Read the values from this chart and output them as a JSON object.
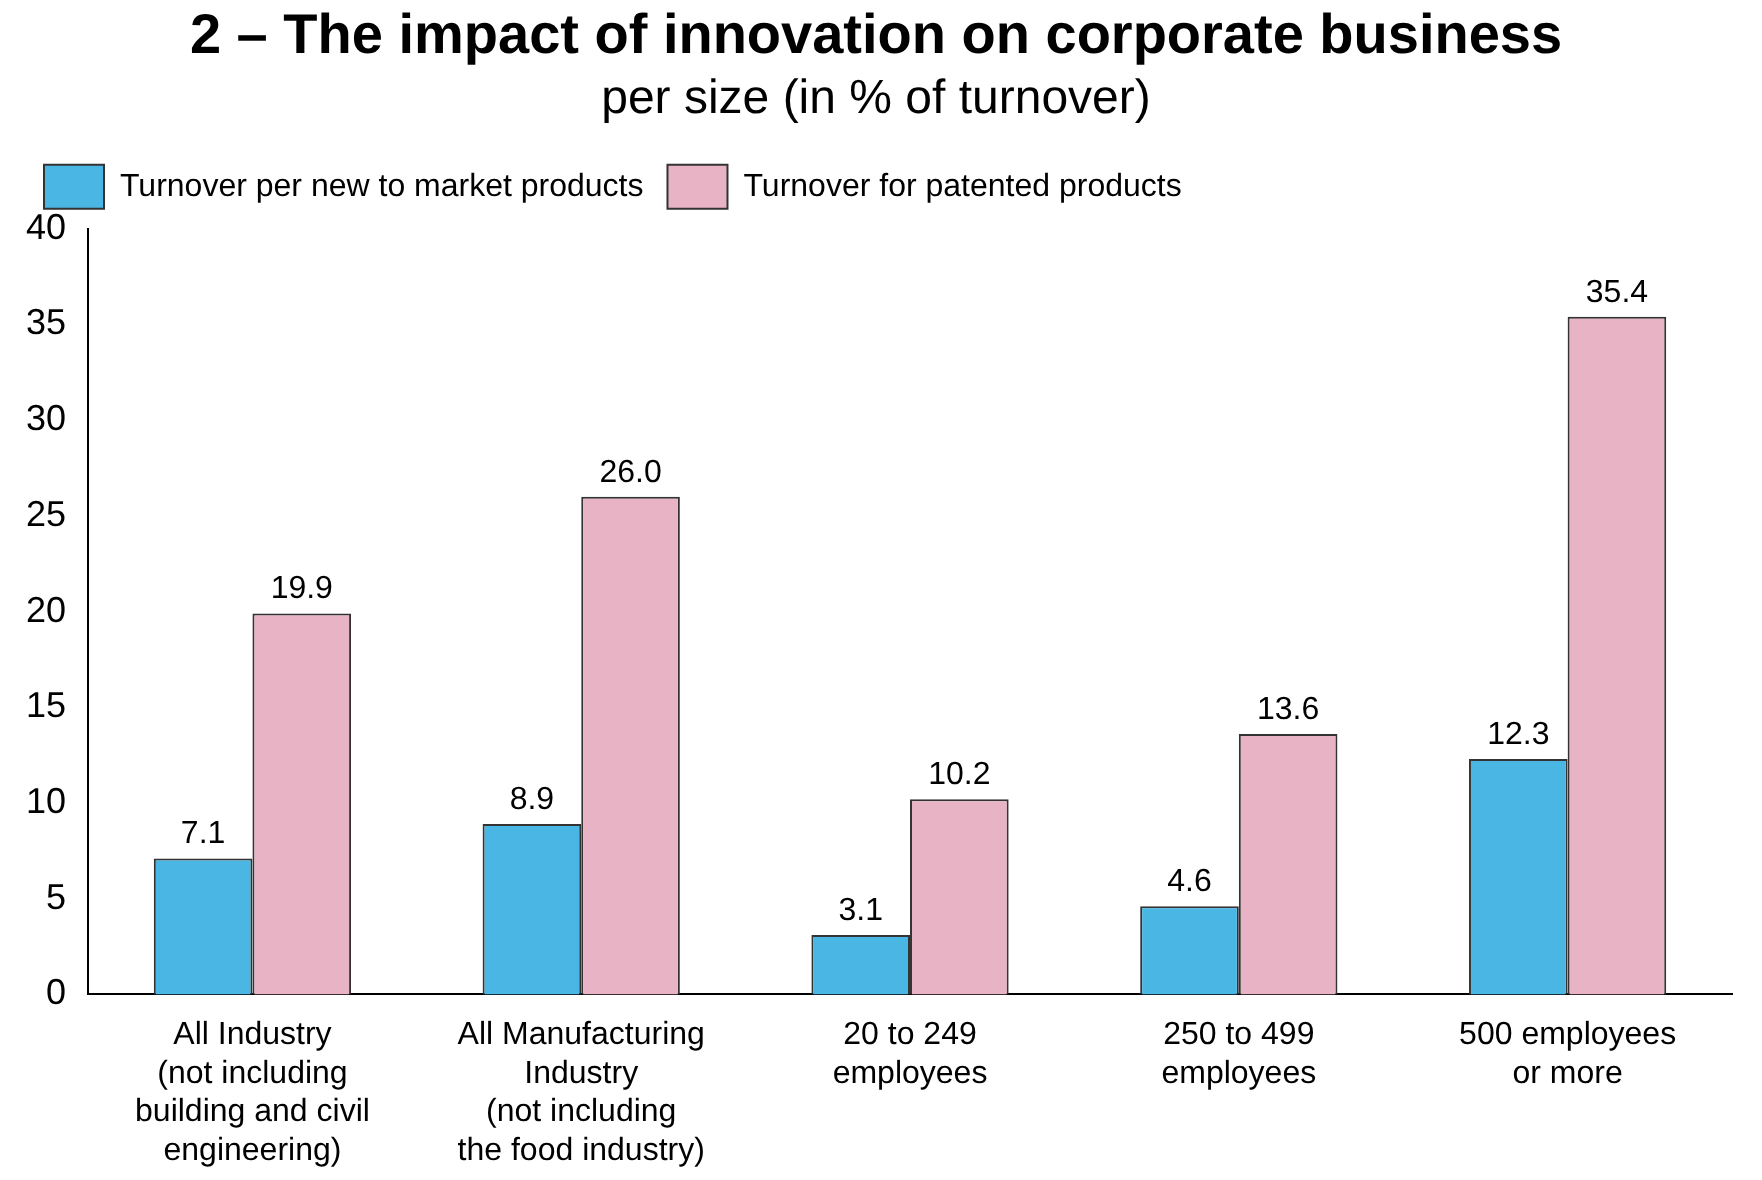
{
  "chart_data": {
    "type": "bar",
    "title": "2 – The impact of innovation on corporate business",
    "subtitle": "per size (in % of turnover)",
    "categories": [
      "All Industry\n(not including\nbuilding and civil\nengineering)",
      "All Manufacturing\nIndustry\n(not including\nthe food industry)",
      "20 to 249\nemployees",
      "250 to 499\nemployees",
      "500 employees\nor more"
    ],
    "series": [
      {
        "name": "Turnover per new to market products",
        "color": "#4ab6e4",
        "values": [
          7.1,
          8.9,
          3.1,
          4.6,
          12.3
        ]
      },
      {
        "name": "Turnover for patented products",
        "color": "#e9b3c6",
        "values": [
          19.9,
          26.0,
          10.2,
          13.6,
          35.4
        ]
      }
    ],
    "value_labels": [
      [
        "7.1",
        "8.9",
        "3.1",
        "4.6",
        "12.3"
      ],
      [
        "19.9",
        "26.0",
        "10.2",
        "13.6",
        "35.4"
      ]
    ],
    "ylim": [
      0,
      40
    ],
    "yticks": [
      0,
      5,
      10,
      15,
      20,
      25,
      30,
      35,
      40
    ],
    "grid": false,
    "legend": "top left"
  }
}
